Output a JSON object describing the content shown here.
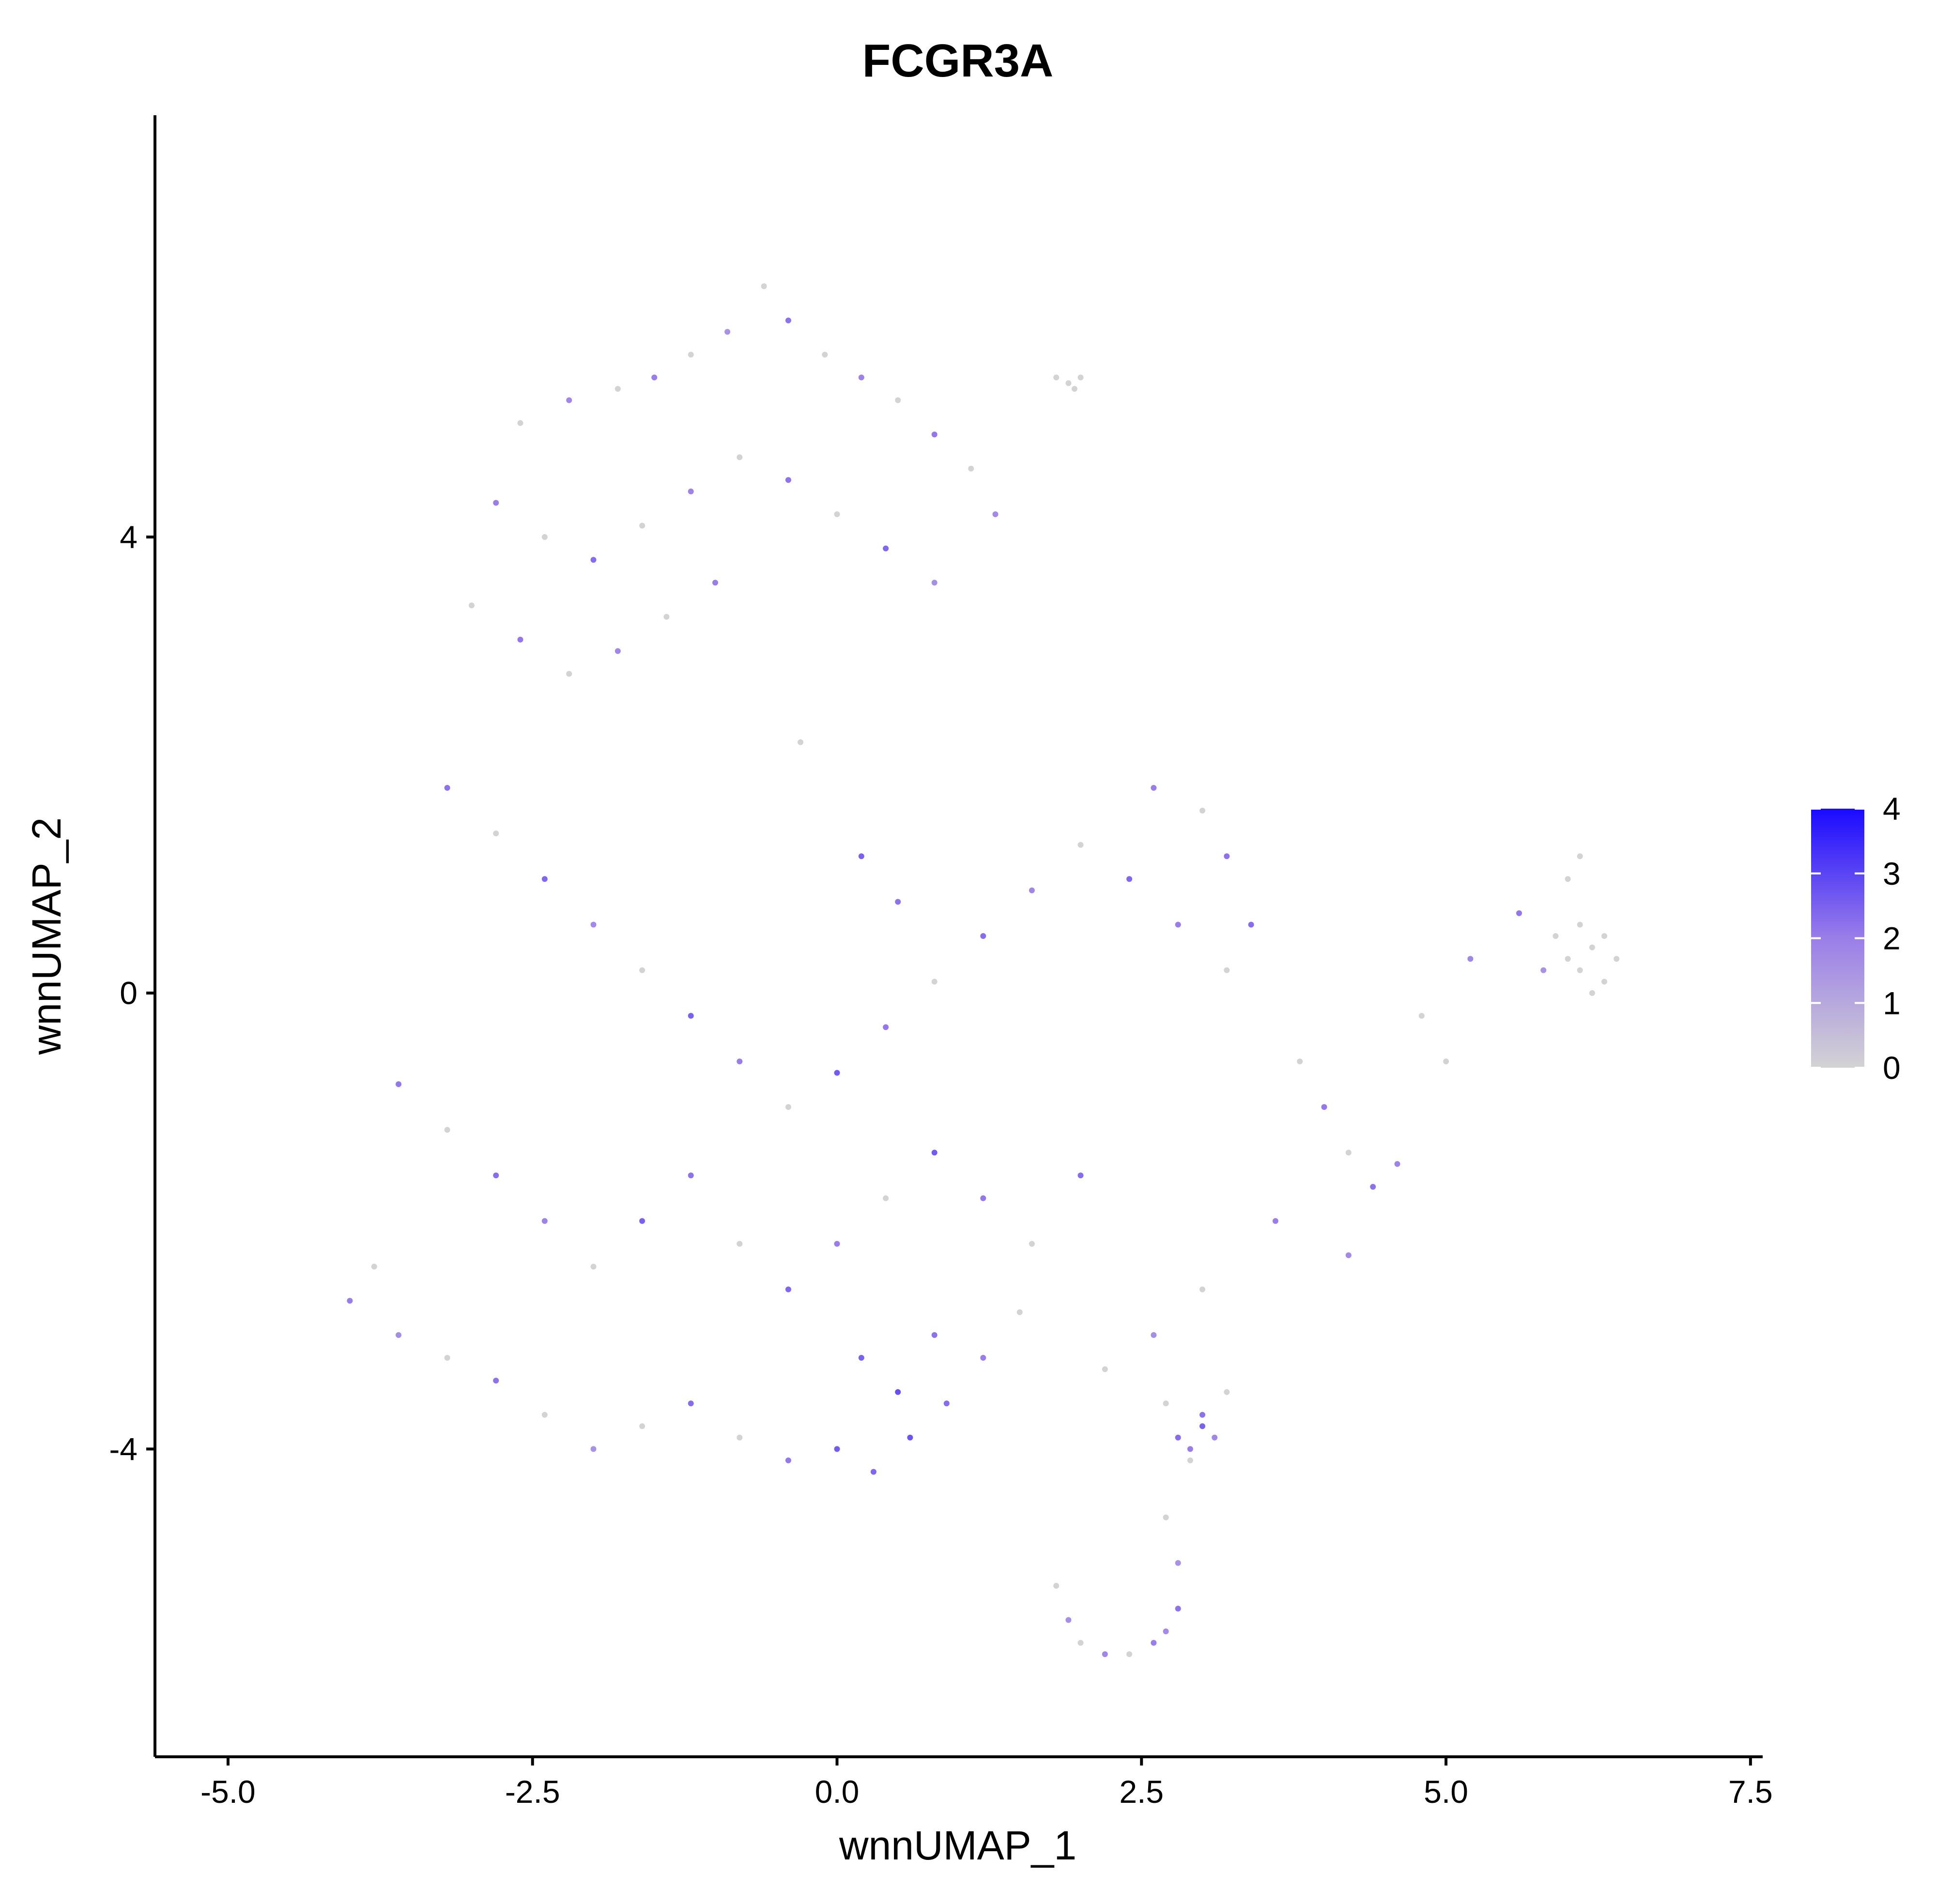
{
  "chart_data": {
    "type": "scatter",
    "title": "FCGR3A",
    "xlabel": "wnnUMAP_1",
    "ylabel": "wnnUMAP_2",
    "xlim": [
      -5.6,
      7.6
    ],
    "ylim": [
      -6.7,
      7.7
    ],
    "x_ticks": [
      {
        "value": -5.0,
        "label": "-5.0"
      },
      {
        "value": -2.5,
        "label": "-2.5"
      },
      {
        "value": 0.0,
        "label": "0.0"
      },
      {
        "value": 2.5,
        "label": "2.5"
      },
      {
        "value": 5.0,
        "label": "5.0"
      },
      {
        "value": 7.5,
        "label": "7.5"
      }
    ],
    "y_ticks": [
      {
        "value": -4,
        "label": "-4"
      },
      {
        "value": 0,
        "label": "0"
      },
      {
        "value": 4,
        "label": "4"
      }
    ],
    "grid": false,
    "legend": {
      "placement": "right",
      "type": "colorbar",
      "min": 0,
      "max": 4,
      "ticks": [
        {
          "value": 0,
          "label": "0"
        },
        {
          "value": 1,
          "label": "1"
        },
        {
          "value": 2,
          "label": "2"
        },
        {
          "value": 3,
          "label": "3"
        },
        {
          "value": 4,
          "label": "4"
        }
      ],
      "color_low": "#d3d3d3",
      "color_mid": "#9a7ee8",
      "color_high": "#1a0aff"
    },
    "point_color_low": "#d3d3d3",
    "point_color_high": "#1a0aff",
    "series": [
      {
        "region": "main-cluster-upper-lobe",
        "points": [
          [
            -2.6,
            5.0,
            0.0
          ],
          [
            -2.2,
            5.2,
            1.8
          ],
          [
            -1.8,
            5.3,
            0.0
          ],
          [
            -1.5,
            5.4,
            2.0
          ],
          [
            -1.2,
            5.6,
            0.0
          ],
          [
            -0.9,
            5.8,
            1.5
          ],
          [
            -0.6,
            6.2,
            0.0
          ],
          [
            -0.4,
            5.9,
            2.2
          ],
          [
            -0.1,
            5.6,
            0.0
          ],
          [
            0.2,
            5.4,
            1.9
          ],
          [
            0.5,
            5.2,
            0.0
          ],
          [
            0.8,
            4.9,
            2.1
          ],
          [
            1.1,
            4.6,
            0.0
          ],
          [
            1.3,
            4.2,
            1.7
          ],
          [
            -2.8,
            4.3,
            2.0
          ],
          [
            -2.4,
            4.0,
            0.0
          ],
          [
            -2.0,
            3.8,
            2.3
          ],
          [
            -1.6,
            4.1,
            0.0
          ],
          [
            -1.2,
            4.4,
            1.9
          ],
          [
            -0.8,
            4.7,
            0.0
          ],
          [
            -0.4,
            4.5,
            2.2
          ],
          [
            0.0,
            4.2,
            0.0
          ],
          [
            0.4,
            3.9,
            2.4
          ],
          [
            0.8,
            3.6,
            1.6
          ],
          [
            -3.0,
            3.4,
            0.0
          ],
          [
            -2.6,
            3.1,
            2.1
          ],
          [
            -2.2,
            2.8,
            0.0
          ],
          [
            -1.8,
            3.0,
            1.8
          ],
          [
            -1.4,
            3.3,
            0.0
          ],
          [
            -1.0,
            3.6,
            2.0
          ]
        ]
      },
      {
        "region": "main-cluster-center",
        "points": [
          [
            -3.2,
            1.8,
            2.2
          ],
          [
            -2.8,
            1.4,
            0.0
          ],
          [
            -2.4,
            1.0,
            2.4
          ],
          [
            -2.0,
            0.6,
            1.7
          ],
          [
            -1.6,
            0.2,
            0.0
          ],
          [
            -1.2,
            -0.2,
            2.5
          ],
          [
            -0.8,
            -0.6,
            2.0
          ],
          [
            -0.4,
            -1.0,
            0.0
          ],
          [
            0.0,
            -0.7,
            2.6
          ],
          [
            0.4,
            -0.3,
            2.1
          ],
          [
            0.8,
            0.1,
            0.0
          ],
          [
            1.2,
            0.5,
            2.3
          ],
          [
            1.6,
            0.9,
            1.8
          ],
          [
            2.0,
            1.3,
            0.0
          ],
          [
            2.4,
            1.0,
            2.4
          ],
          [
            2.8,
            0.6,
            2.0
          ],
          [
            3.2,
            0.2,
            0.0
          ],
          [
            -3.6,
            -0.8,
            2.1
          ],
          [
            -3.2,
            -1.2,
            0.0
          ],
          [
            -2.8,
            -1.6,
            2.3
          ],
          [
            -2.4,
            -2.0,
            1.9
          ],
          [
            -2.0,
            -2.4,
            0.0
          ],
          [
            -1.6,
            -2.0,
            2.5
          ],
          [
            -1.2,
            -1.6,
            2.2
          ],
          [
            -0.8,
            -2.2,
            0.0
          ],
          [
            -0.4,
            -2.6,
            2.4
          ],
          [
            0.0,
            -2.2,
            2.0
          ],
          [
            0.4,
            -1.8,
            0.0
          ],
          [
            0.8,
            -1.4,
            2.6
          ],
          [
            1.2,
            -1.8,
            2.1
          ],
          [
            1.6,
            -2.2,
            0.0
          ],
          [
            2.0,
            -1.6,
            2.3
          ],
          [
            0.2,
            1.2,
            2.5
          ],
          [
            0.5,
            0.8,
            2.2
          ],
          [
            -0.3,
            2.2,
            0.0
          ]
        ]
      },
      {
        "region": "main-cluster-lower-lobe",
        "points": [
          [
            -3.8,
            -2.4,
            0.0
          ],
          [
            -4.0,
            -2.7,
            2.0
          ],
          [
            -3.6,
            -3.0,
            1.6
          ],
          [
            -3.2,
            -3.2,
            0.0
          ],
          [
            -2.8,
            -3.4,
            2.2
          ],
          [
            -2.4,
            -3.7,
            0.0
          ],
          [
            -2.0,
            -4.0,
            1.5
          ],
          [
            -1.6,
            -3.8,
            0.0
          ],
          [
            -1.2,
            -3.6,
            2.3
          ],
          [
            -0.8,
            -3.9,
            0.0
          ],
          [
            -0.4,
            -4.1,
            2.1
          ],
          [
            0.0,
            -4.0,
            2.6
          ],
          [
            0.3,
            -4.2,
            2.4
          ],
          [
            0.6,
            -3.9,
            2.7
          ],
          [
            0.9,
            -3.6,
            2.3
          ],
          [
            1.2,
            -3.2,
            2.0
          ],
          [
            1.5,
            -2.8,
            0.0
          ],
          [
            0.2,
            -3.2,
            2.5
          ],
          [
            0.5,
            -3.5,
            2.8
          ],
          [
            0.8,
            -3.0,
            2.2
          ]
        ]
      },
      {
        "region": "right-arm",
        "points": [
          [
            3.2,
            1.2,
            2.2
          ],
          [
            3.0,
            1.6,
            0.0
          ],
          [
            2.6,
            1.8,
            2.0
          ],
          [
            3.4,
            0.6,
            2.3
          ],
          [
            3.8,
            -0.6,
            0.0
          ],
          [
            4.0,
            -1.0,
            2.1
          ],
          [
            4.2,
            -1.4,
            0.0
          ],
          [
            4.4,
            -1.7,
            2.2
          ],
          [
            4.6,
            -1.5,
            1.9
          ],
          [
            3.6,
            -2.0,
            2.0
          ],
          [
            4.8,
            -0.2,
            0.0
          ],
          [
            5.2,
            0.3,
            1.8
          ],
          [
            5.6,
            0.7,
            2.1
          ],
          [
            5.0,
            -0.6,
            0.0
          ],
          [
            4.2,
            -2.3,
            1.7
          ],
          [
            3.0,
            -2.6,
            0.0
          ],
          [
            2.6,
            -3.0,
            1.6
          ],
          [
            2.2,
            -3.3,
            0.0
          ]
        ]
      },
      {
        "region": "far-right-cluster",
        "points": [
          [
            5.9,
            0.5,
            0.0
          ],
          [
            6.0,
            0.3,
            0.0
          ],
          [
            6.1,
            0.2,
            0.0
          ],
          [
            6.2,
            0.4,
            0.0
          ],
          [
            6.3,
            0.1,
            0.0
          ],
          [
            6.4,
            0.3,
            0.0
          ],
          [
            6.1,
            0.6,
            0.0
          ],
          [
            6.0,
            1.0,
            0.0
          ],
          [
            6.1,
            1.2,
            0.0
          ],
          [
            5.8,
            0.2,
            1.5
          ],
          [
            6.2,
            0.0,
            0.0
          ],
          [
            6.3,
            0.5,
            0.0
          ]
        ]
      },
      {
        "region": "small-cluster-lower-right",
        "points": [
          [
            2.8,
            -3.9,
            2.3
          ],
          [
            2.9,
            -4.0,
            2.0
          ],
          [
            3.0,
            -3.8,
            2.5
          ],
          [
            3.1,
            -3.9,
            1.8
          ],
          [
            2.9,
            -4.1,
            0.0
          ],
          [
            3.0,
            -3.7,
            2.2
          ],
          [
            2.7,
            -3.6,
            0.0
          ],
          [
            3.2,
            -3.5,
            0.0
          ]
        ]
      },
      {
        "region": "bottom-arc",
        "points": [
          [
            1.8,
            -5.2,
            0.0
          ],
          [
            1.9,
            -5.5,
            1.6
          ],
          [
            2.0,
            -5.7,
            0.0
          ],
          [
            2.2,
            -5.8,
            1.8
          ],
          [
            2.4,
            -5.8,
            0.0
          ],
          [
            2.6,
            -5.7,
            2.0
          ],
          [
            2.7,
            -5.6,
            1.7
          ],
          [
            2.8,
            -5.4,
            2.2
          ],
          [
            2.8,
            -5.0,
            1.5
          ],
          [
            2.7,
            -4.6,
            0.0
          ]
        ]
      },
      {
        "region": "top-right-islet",
        "points": [
          [
            1.8,
            5.4,
            0.0
          ],
          [
            1.9,
            5.35,
            0.0
          ],
          [
            2.0,
            5.4,
            0.0
          ],
          [
            1.95,
            5.3,
            0.0
          ]
        ]
      }
    ]
  }
}
